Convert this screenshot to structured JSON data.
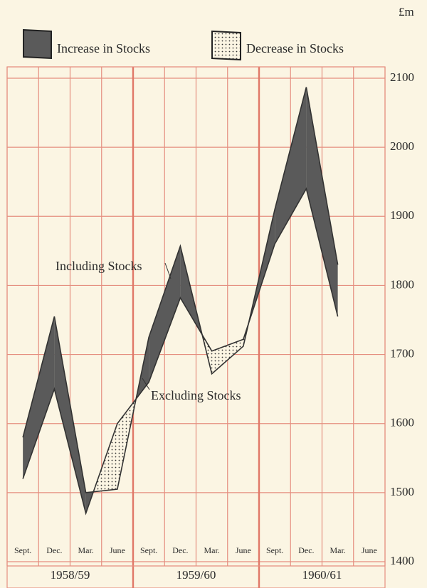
{
  "chart_data": {
    "type": "line",
    "unit_label": "£m",
    "categories": [
      "Sept.",
      "Dec.",
      "Mar.",
      "June",
      "Sept.",
      "Dec.",
      "Mar.",
      "June",
      "Sept.",
      "Dec.",
      "Mar.",
      "June"
    ],
    "groups": [
      "1958/59",
      "1959/60",
      "1960/61"
    ],
    "series": [
      {
        "name": "Including Stocks",
        "color": "#333333",
        "values": [
          1580,
          1755,
          1500,
          1505,
          1725,
          1857,
          1672,
          1712,
          1910,
          2087,
          1830,
          null
        ]
      },
      {
        "name": "Excluding Stocks",
        "color": "#333333",
        "values": [
          1520,
          1650,
          1470,
          1600,
          1660,
          1782,
          1705,
          1722,
          1860,
          1940,
          1755,
          null
        ]
      }
    ],
    "legend": [
      {
        "name": "Increase in Stocks",
        "color": "#5a5a5a"
      },
      {
        "name": "Decrease in Stocks",
        "color": "dotted"
      }
    ],
    "ylim": [
      1400,
      2100
    ],
    "yticks": [
      1400,
      1500,
      1600,
      1700,
      1800,
      1900,
      2000,
      2100
    ],
    "grid": true
  }
}
